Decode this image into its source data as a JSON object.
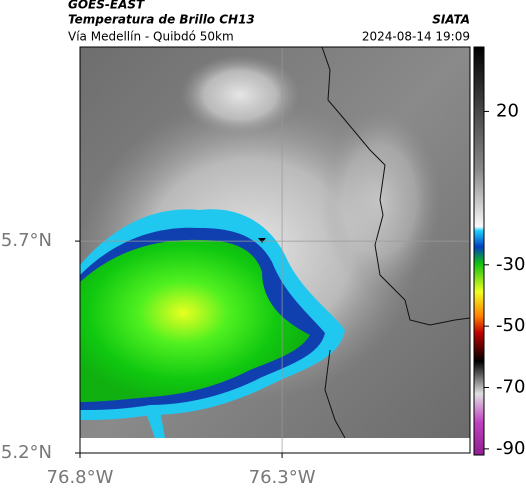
{
  "header": {
    "line1": "GOES-EAST",
    "title": "Temperatura de Brillo CH13",
    "subtitle": "Vía Medellín - Quibdó 50km",
    "agency": "SIATA",
    "timestamp": "2024-08-14 19:09"
  },
  "map": {
    "xlim": [
      -76.8,
      -75.835
    ],
    "ylim": [
      5.2,
      6.158
    ],
    "xticks": [
      {
        "value": -76.8,
        "label": "76.8°W"
      },
      {
        "value": -76.3,
        "label": "76.3°W"
      }
    ],
    "yticks": [
      {
        "value": 5.2,
        "label": "5.2°N"
      },
      {
        "value": 5.7,
        "label": "5.7°N"
      }
    ],
    "grid": true
  },
  "colorbar": {
    "lim": [
      41,
      -92
    ],
    "ticks": [
      20,
      -30,
      -50,
      -70,
      -90
    ]
  }
}
